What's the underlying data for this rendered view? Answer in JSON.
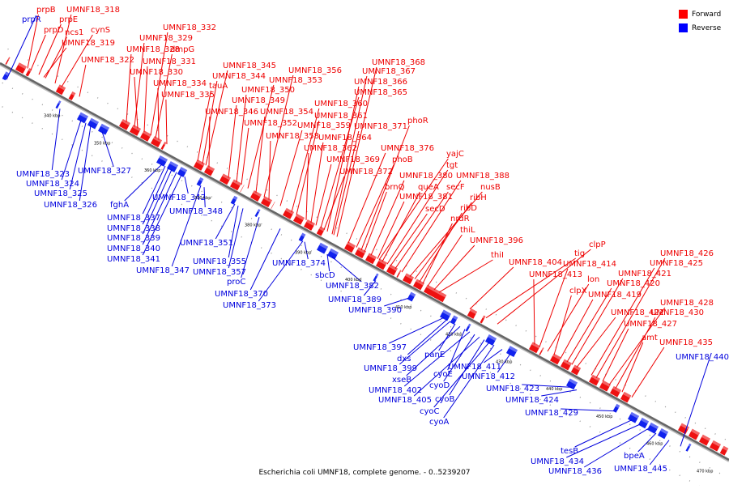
{
  "caption": "Escherichia coli UMNF18, complete genome. - 0..5239207",
  "legend": {
    "forward": {
      "label": "Forward",
      "color": "#ff0000"
    },
    "reverse": {
      "label": "Reverse",
      "color": "#0000ff"
    }
  },
  "ticks": [
    "340 kbp",
    "350 kbp",
    "360 kbp",
    "370 kbp",
    "380 kbp",
    "390 kbp",
    "400 kbp",
    "410 kbp",
    "420 kbp",
    "430 kbp",
    "440 kbp",
    "450 kbp",
    "460 kbp",
    "470 kbp"
  ],
  "forward_genes": [
    "prpB",
    "prpE",
    "prpD",
    "ncs1",
    "cynS",
    "UMNF18_318",
    "UMNF18_319",
    "UMNF18_322",
    "UMNF18_328",
    "UMNF18_329",
    "UMNF18_330",
    "UMNF18_331",
    "UMNF18_332",
    "dmpG",
    "UMNF18_334",
    "UMNF18_335",
    "UMNF18_344",
    "UMNF18_345",
    "tauA",
    "UMNF18_346",
    "UMNF18_349",
    "UMNF18_350",
    "UMNF18_352",
    "UMNF18_353",
    "UMNF18_354",
    "UMNF18_356",
    "UMNF18_358",
    "UMNF18_359",
    "UMNF18_360",
    "UMNF18_361",
    "UMNF18_362",
    "UMNF18_364",
    "UMNF18_365",
    "UMNF18_366",
    "UMNF18_367",
    "UMNF18_368",
    "UMNF18_369",
    "UMNF18_371",
    "UMNF18_372",
    "UMNF18_376",
    "phoR",
    "phoB",
    "yajC",
    "tgt",
    "UMNF18_380",
    "brnQ",
    "queA",
    "secF",
    "UMNF18_381",
    "secD",
    "UMNF18_388",
    "nusB",
    "ribH",
    "ribD",
    "nrdR",
    "thiL",
    "UMNF18_396",
    "thiI",
    "UMNF18_404",
    "tig",
    "clpP",
    "UMNF18_413",
    "UMNF18_414",
    "lon",
    "clpX",
    "UMNF18_419",
    "UMNF18_420",
    "UMNF18_421",
    "UMNF18_422",
    "UMNF18_425",
    "UMNF18_426",
    "UMNF18_427",
    "UMNF18_428",
    "UMNF18_430",
    "amt",
    "UMNF18_435"
  ],
  "reverse_genes": [
    "prpR",
    "UMNF18_323",
    "UMNF18_324",
    "UMNF18_325",
    "UMNF18_326",
    "UMNF18_327",
    "fghA",
    "UMNF18_337",
    "UMNF18_338",
    "UMNF18_339",
    "UMNF18_340",
    "UMNF18_341",
    "UMNF18_342",
    "UMNF18_347",
    "UMNF18_348",
    "UMNF18_351",
    "UMNF18_355",
    "UMNF18_357",
    "proC",
    "UMNF18_370",
    "UMNF18_373",
    "UMNF18_374",
    "sbcD",
    "UMNF18_382",
    "UMNF18_389",
    "UMNF18_390",
    "UMNF18_397",
    "dxs",
    "UMNF18_399",
    "panE",
    "xseB",
    "cyoE",
    "UMNF18_402",
    "cyoD",
    "UMNF18_405",
    "cyoB",
    "cyoC",
    "cyoA",
    "UMNF18_411",
    "UMNF18_412",
    "UMNF18_423",
    "UMNF18_424",
    "UMNF18_429",
    "UMNF18_440",
    "tesB",
    "UMNF18_434",
    "UMNF18_436",
    "bpeA",
    "UMNF18_445"
  ]
}
